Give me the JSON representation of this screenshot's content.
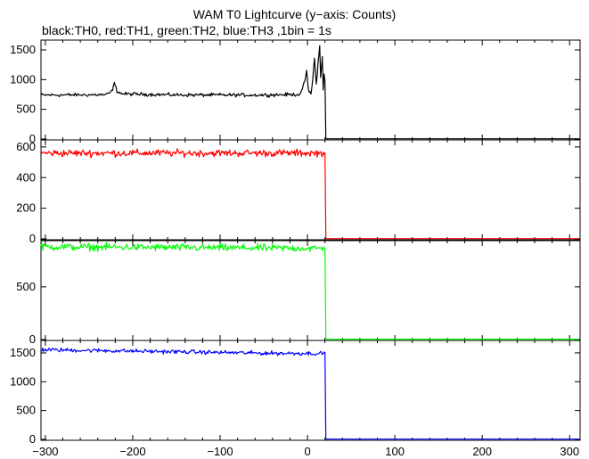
{
  "header": {
    "title": "WAM T0 Lightcurve (y−axis: Counts)",
    "subtitle": "black:TH0, red:TH1, green:TH2, blue:TH3 ,1bin = 1s"
  },
  "chart_data": {
    "type": "line",
    "title": "WAM T0 Lightcurve (y−axis: Counts)",
    "subtitle": "black:TH0, red:TH1, green:TH2, blue:TH3 ,1bin = 1s",
    "xlim": [
      -305,
      312
    ],
    "xticks": [
      -300,
      -200,
      -100,
      0,
      100,
      200,
      300
    ],
    "xtick_labels": [
      "−300",
      "−200",
      "−100",
      "0",
      "100",
      "200",
      "300"
    ],
    "bin_seconds": 1,
    "data_end_x": 20,
    "grid": false,
    "panels": [
      {
        "series": "TH0",
        "color": "#000000",
        "ylim": [
          0,
          1650
        ],
        "yticks": [
          0,
          500,
          1000,
          1500
        ],
        "ytick_labels": [
          "0",
          "500",
          "1000",
          "1500"
        ],
        "baseline": 740,
        "noise": 25,
        "after": 5,
        "points": [
          [
            -305,
            740
          ],
          [
            -230,
            745
          ],
          [
            -224,
            800
          ],
          [
            -221,
            940
          ],
          [
            -218,
            810
          ],
          [
            -212,
            760
          ],
          [
            -150,
            742
          ],
          [
            -60,
            740
          ],
          [
            -10,
            750
          ],
          [
            -6,
            820
          ],
          [
            -3,
            980
          ],
          [
            -1,
            1150
          ],
          [
            1,
            820
          ],
          [
            4,
            760
          ],
          [
            6,
            1000
          ],
          [
            8,
            1350
          ],
          [
            10,
            930
          ],
          [
            12,
            1250
          ],
          [
            14,
            1560
          ],
          [
            15,
            1040
          ],
          [
            17,
            1380
          ],
          [
            18,
            850
          ],
          [
            19,
            1100
          ],
          [
            20,
            980
          ]
        ]
      },
      {
        "series": "TH1",
        "color": "#ff0000",
        "ylim": [
          0,
          640
        ],
        "yticks": [
          0,
          200,
          400,
          600
        ],
        "ytick_labels": [
          "0",
          "200",
          "400",
          "600"
        ],
        "baseline": 560,
        "noise": 20,
        "after": 2,
        "points": [
          [
            -305,
            560
          ],
          [
            20,
            560
          ]
        ]
      },
      {
        "series": "TH2",
        "color": "#00ff00",
        "ylim": [
          0,
          930
        ],
        "yticks": [
          0,
          500
        ],
        "ytick_labels": [
          "0",
          "500"
        ],
        "baseline": 870,
        "noise": 30,
        "after": 3,
        "points": [
          [
            -305,
            880
          ],
          [
            20,
            865
          ]
        ]
      },
      {
        "series": "TH3",
        "color": "#0000ff",
        "ylim": [
          0,
          1700
        ],
        "yticks": [
          0,
          500,
          1000,
          1500
        ],
        "ytick_labels": [
          "0",
          "500",
          "1000",
          "1500"
        ],
        "baseline": 1520,
        "noise": 30,
        "after": 5,
        "points": [
          [
            -305,
            1555
          ],
          [
            -150,
            1520
          ],
          [
            -50,
            1495
          ],
          [
            20,
            1490
          ]
        ]
      }
    ]
  }
}
